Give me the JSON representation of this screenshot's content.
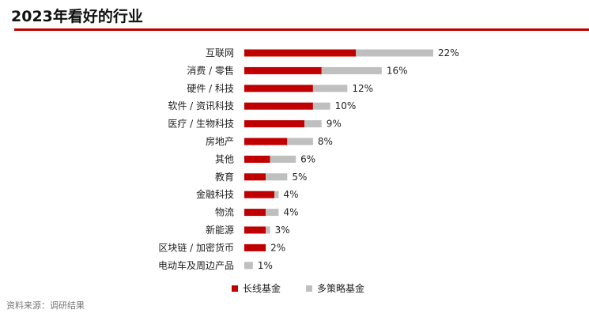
{
  "page": {
    "title": "2023年看好的行业",
    "source": "资料来源：调研结果"
  },
  "colors": {
    "accent": "#c00000",
    "long_fund": "#c00000",
    "multi_fund": "#bfbfbf"
  },
  "legend": [
    {
      "label": "长线基金",
      "color": "#c00000"
    },
    {
      "label": "多策略基金",
      "color": "#bfbfbf"
    }
  ],
  "chart_data": {
    "type": "bar",
    "orientation": "horizontal",
    "stacked": true,
    "title": "2023年看好的行业",
    "categories": [
      "互联网",
      "消费 / 零售",
      "硬件 / 科技",
      "软件 / 资讯科技",
      "医疗 / 生物科技",
      "房地产",
      "其他",
      "教育",
      "金融科技",
      "物流",
      "新能源",
      "区块链 / 加密货币",
      "电动车及周边产品"
    ],
    "series": [
      {
        "name": "长线基金",
        "values": [
          13,
          9,
          8,
          8,
          7,
          5,
          3,
          2.5,
          3.5,
          2.5,
          2.5,
          2.5,
          0
        ]
      },
      {
        "name": "多策略基金",
        "values": [
          9,
          7,
          4,
          2,
          2,
          3,
          3,
          2.5,
          0.5,
          1.5,
          0.5,
          0,
          1
        ]
      }
    ],
    "totals": [
      "22%",
      "16%",
      "12%",
      "10%",
      "9%",
      "8%",
      "6%",
      "5%",
      "4%",
      "4%",
      "3%",
      "2%",
      "1%"
    ],
    "xlim": [
      0,
      22
    ],
    "grid": false,
    "legend_position": "bottom"
  }
}
